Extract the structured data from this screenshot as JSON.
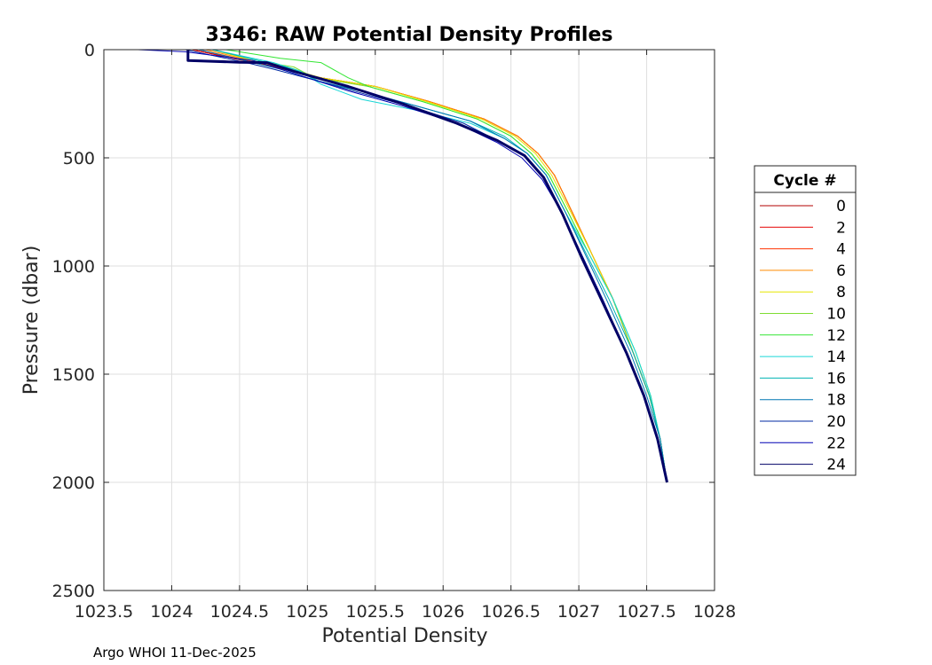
{
  "chart_data": {
    "type": "line",
    "title": "3346: RAW Potential Density Profiles",
    "xlabel": "Potential Density",
    "ylabel": "Pressure (dbar)",
    "xlim": [
      1023.5,
      1028
    ],
    "ylim": [
      0,
      2500
    ],
    "y_reversed": true,
    "grid": true,
    "x_ticks": [
      "1023.5",
      "1024",
      "1024.5",
      "1025",
      "1025.5",
      "1026",
      "1026.5",
      "1027",
      "1027.5",
      "1028"
    ],
    "y_ticks": [
      "0",
      "500",
      "1000",
      "1500",
      "2000",
      "2500"
    ],
    "legend": {
      "title": "Cycle #",
      "placement": "right-outside",
      "entries": [
        "0",
        "2",
        "4",
        "6",
        "8",
        "10",
        "12",
        "14",
        "16",
        "18",
        "20",
        "22",
        "24"
      ]
    },
    "colors": [
      "#b30000",
      "#e60000",
      "#ff3300",
      "#ff8c00",
      "#e6e600",
      "#7fdd33",
      "#33e633",
      "#1ad6d6",
      "#00b3b3",
      "#0077b3",
      "#002aa3",
      "#0000b3",
      "#000066"
    ],
    "series": [
      {
        "name": "0",
        "x": [
          1024.15,
          1024.6,
          1024.75,
          1025.1,
          1025.5,
          1025.9,
          1026.3,
          1026.55,
          1026.7,
          1026.82,
          1026.95,
          1027.1,
          1027.25,
          1027.4,
          1027.52,
          1027.6,
          1027.65
        ],
        "y": [
          0,
          60,
          80,
          130,
          170,
          240,
          320,
          400,
          480,
          580,
          750,
          950,
          1150,
          1400,
          1600,
          1800,
          2000
        ]
      },
      {
        "name": "2",
        "x": [
          1024.15,
          1024.6,
          1024.75,
          1025.1,
          1025.5,
          1025.9,
          1026.3,
          1026.55,
          1026.7,
          1026.82,
          1026.95,
          1027.1,
          1027.25,
          1027.4,
          1027.52,
          1027.6,
          1027.65
        ],
        "y": [
          0,
          60,
          80,
          130,
          170,
          240,
          320,
          400,
          480,
          580,
          750,
          950,
          1150,
          1400,
          1600,
          1800,
          2000
        ]
      },
      {
        "name": "4",
        "x": [
          1024.2,
          1024.62,
          1024.78,
          1025.1,
          1025.5,
          1025.9,
          1026.3,
          1026.55,
          1026.7,
          1026.82,
          1026.95,
          1027.1,
          1027.25,
          1027.4,
          1027.52,
          1027.6,
          1027.65
        ],
        "y": [
          0,
          60,
          80,
          130,
          170,
          240,
          320,
          400,
          480,
          580,
          750,
          950,
          1150,
          1400,
          1600,
          1800,
          2000
        ]
      },
      {
        "name": "6",
        "x": [
          1024.25,
          1024.65,
          1024.8,
          1025.1,
          1025.5,
          1025.9,
          1026.3,
          1026.55,
          1026.7,
          1026.82,
          1026.95,
          1027.1,
          1027.25,
          1027.4,
          1027.52,
          1027.6,
          1027.65
        ],
        "y": [
          0,
          60,
          80,
          130,
          170,
          240,
          320,
          400,
          480,
          580,
          750,
          950,
          1150,
          1400,
          1600,
          1800,
          2000
        ]
      },
      {
        "name": "8",
        "x": [
          1024.3,
          1024.65,
          1024.82,
          1025.1,
          1025.5,
          1025.88,
          1026.28,
          1026.53,
          1026.68,
          1026.8,
          1026.94,
          1027.1,
          1027.25,
          1027.4,
          1027.52,
          1027.6,
          1027.65
        ],
        "y": [
          0,
          60,
          80,
          130,
          170,
          240,
          320,
          400,
          480,
          580,
          750,
          950,
          1150,
          1400,
          1600,
          1800,
          2000
        ]
      },
      {
        "name": "10",
        "x": [
          1024.3,
          1024.7,
          1024.9,
          1025.05,
          1025.45,
          1025.85,
          1026.25,
          1026.5,
          1026.65,
          1026.78,
          1026.92,
          1027.08,
          1027.25,
          1027.4,
          1027.52,
          1027.6,
          1027.65
        ],
        "y": [
          0,
          60,
          80,
          130,
          170,
          240,
          320,
          400,
          480,
          580,
          750,
          950,
          1150,
          1400,
          1600,
          1800,
          2000
        ]
      },
      {
        "name": "12",
        "x": [
          1024.4,
          1024.8,
          1025.1,
          1025.3,
          1025.45,
          1025.85,
          1026.25,
          1026.5,
          1026.65,
          1026.78,
          1026.92,
          1027.08,
          1027.25,
          1027.42,
          1027.53,
          1027.6,
          1027.65
        ],
        "y": [
          0,
          40,
          60,
          130,
          170,
          240,
          320,
          400,
          480,
          580,
          750,
          950,
          1150,
          1400,
          1600,
          1800,
          2000
        ]
      },
      {
        "name": "14",
        "x": [
          1024.3,
          1024.75,
          1024.95,
          1025.1,
          1025.4,
          1025.8,
          1026.2,
          1026.45,
          1026.62,
          1026.76,
          1026.9,
          1027.08,
          1027.25,
          1027.42,
          1027.53,
          1027.6,
          1027.65
        ],
        "y": [
          0,
          60,
          100,
          160,
          230,
          280,
          340,
          410,
          480,
          580,
          750,
          950,
          1150,
          1400,
          1600,
          1800,
          2000
        ]
      },
      {
        "name": "16",
        "x": [
          1024.3,
          1024.7,
          1024.9,
          1025.1,
          1025.45,
          1025.8,
          1026.2,
          1026.45,
          1026.62,
          1026.76,
          1026.9,
          1027.06,
          1027.22,
          1027.4,
          1027.52,
          1027.6,
          1027.65
        ],
        "y": [
          0,
          60,
          90,
          150,
          200,
          260,
          330,
          400,
          480,
          580,
          750,
          950,
          1150,
          1400,
          1600,
          1800,
          2000
        ]
      },
      {
        "name": "18",
        "x": [
          1024.2,
          1024.6,
          1024.8,
          1025.05,
          1025.45,
          1025.8,
          1026.2,
          1026.45,
          1026.62,
          1026.76,
          1026.9,
          1027.05,
          1027.2,
          1027.38,
          1027.5,
          1027.6,
          1027.65
        ],
        "y": [
          0,
          60,
          90,
          140,
          200,
          260,
          330,
          410,
          480,
          580,
          750,
          950,
          1150,
          1400,
          1600,
          1800,
          2000
        ]
      },
      {
        "name": "20",
        "x": [
          1024.1,
          1024.55,
          1024.75,
          1025.05,
          1025.45,
          1025.8,
          1026.15,
          1026.4,
          1026.6,
          1026.74,
          1026.88,
          1027.03,
          1027.18,
          1027.35,
          1027.48,
          1027.58,
          1027.65
        ],
        "y": [
          0,
          60,
          90,
          140,
          210,
          270,
          340,
          420,
          490,
          590,
          760,
          960,
          1160,
          1400,
          1600,
          1800,
          2000
        ]
      },
      {
        "name": "22",
        "x": [
          1023.75,
          1024.1,
          1024.6,
          1024.9,
          1025.3,
          1025.7,
          1026.1,
          1026.4,
          1026.58,
          1026.73,
          1026.88,
          1027.03,
          1027.18,
          1027.35,
          1027.48,
          1027.58,
          1027.65
        ],
        "y": [
          0,
          10,
          50,
          110,
          190,
          260,
          340,
          430,
          500,
          600,
          760,
          960,
          1160,
          1400,
          1600,
          1800,
          2000
        ]
      },
      {
        "name": "24",
        "x": [
          1024.12,
          1024.12,
          1024.5,
          1024.7,
          1024.9,
          1025.3,
          1025.7,
          1026.1,
          1026.4,
          1026.6,
          1026.74,
          1026.88,
          1027.02,
          1027.17,
          1027.35,
          1027.48,
          1027.58,
          1027.65
        ],
        "y": [
          0,
          50,
          58,
          60,
          100,
          170,
          250,
          340,
          420,
          490,
          590,
          760,
          960,
          1160,
          1400,
          1600,
          1800,
          2000
        ]
      }
    ]
  },
  "footer": {
    "text": "Argo WHOI 11-Dec-2025"
  }
}
